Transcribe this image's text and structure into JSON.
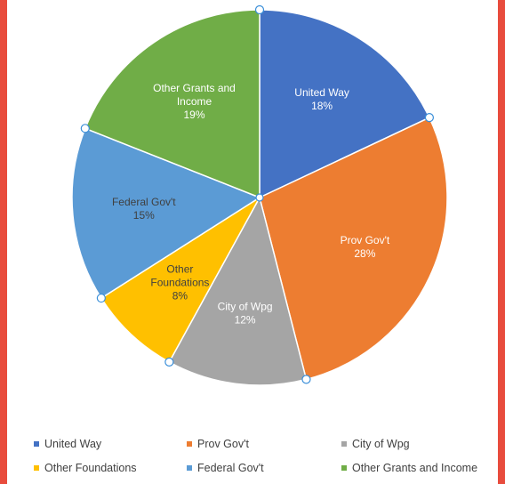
{
  "chart_data": {
    "type": "pie",
    "categories": [
      "United Way",
      "Prov Gov't",
      "City of Wpg",
      "Other Foundations",
      "Federal Gov't",
      "Other Grants and Income"
    ],
    "values": [
      18,
      28,
      12,
      8,
      15,
      19
    ],
    "label_lines": [
      [
        "United Way",
        "18%"
      ],
      [
        "Prov Gov't",
        "28%"
      ],
      [
        "City of Wpg",
        "12%"
      ],
      [
        "Other",
        "Foundations",
        "8%"
      ],
      [
        "Federal Gov't",
        "15%"
      ],
      [
        "Other Grants and",
        "Income",
        "19%"
      ]
    ],
    "colors": [
      "#4472C4",
      "#ED7D31",
      "#A5A5A5",
      "#FFC000",
      "#5B9BD5",
      "#70AD47"
    ],
    "label_colors": [
      "#ffffff",
      "#ffffff",
      "#ffffff",
      "#404040",
      "#404040",
      "#ffffff"
    ],
    "legend_position": "bottom",
    "selected": true
  }
}
